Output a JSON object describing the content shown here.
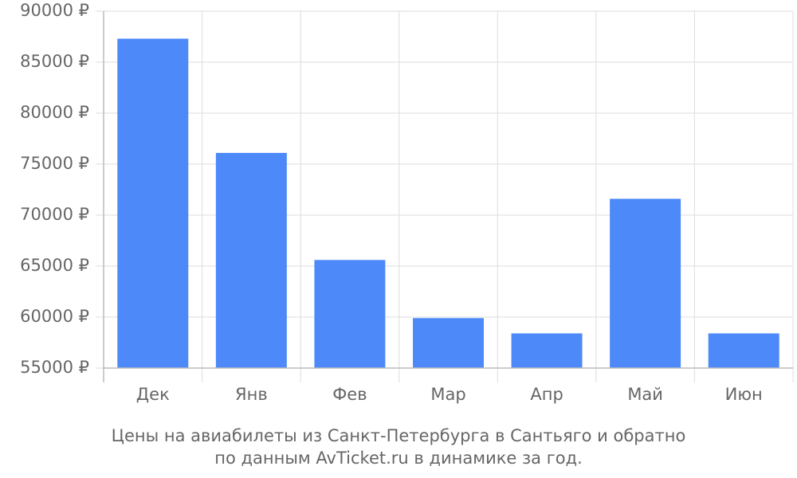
{
  "chart_data": {
    "type": "bar",
    "title_lines": [
      "Цены на авиабилеты из Санкт-Петербурга в Сантьяго и обратно",
      "по данным AvTicket.ru в динамике за год."
    ],
    "categories": [
      "Дек",
      "Янв",
      "Фев",
      "Мар",
      "Апр",
      "Май",
      "Июн"
    ],
    "values": [
      87300,
      76100,
      65600,
      59900,
      58400,
      71600,
      58400
    ],
    "color": "#4d89f9",
    "ylim": [
      55000,
      90000
    ],
    "yticks": [
      {
        "value": 55000,
        "label": "55000 ₽"
      },
      {
        "value": 60000,
        "label": "60000 ₽"
      },
      {
        "value": 65000,
        "label": "65000 ₽"
      },
      {
        "value": 70000,
        "label": "70000 ₽"
      },
      {
        "value": 75000,
        "label": "75000 ₽"
      },
      {
        "value": 80000,
        "label": "80000 ₽"
      },
      {
        "value": 85000,
        "label": "85000 ₽"
      },
      {
        "value": 90000,
        "label": "90000 ₽"
      }
    ],
    "grid": true
  }
}
